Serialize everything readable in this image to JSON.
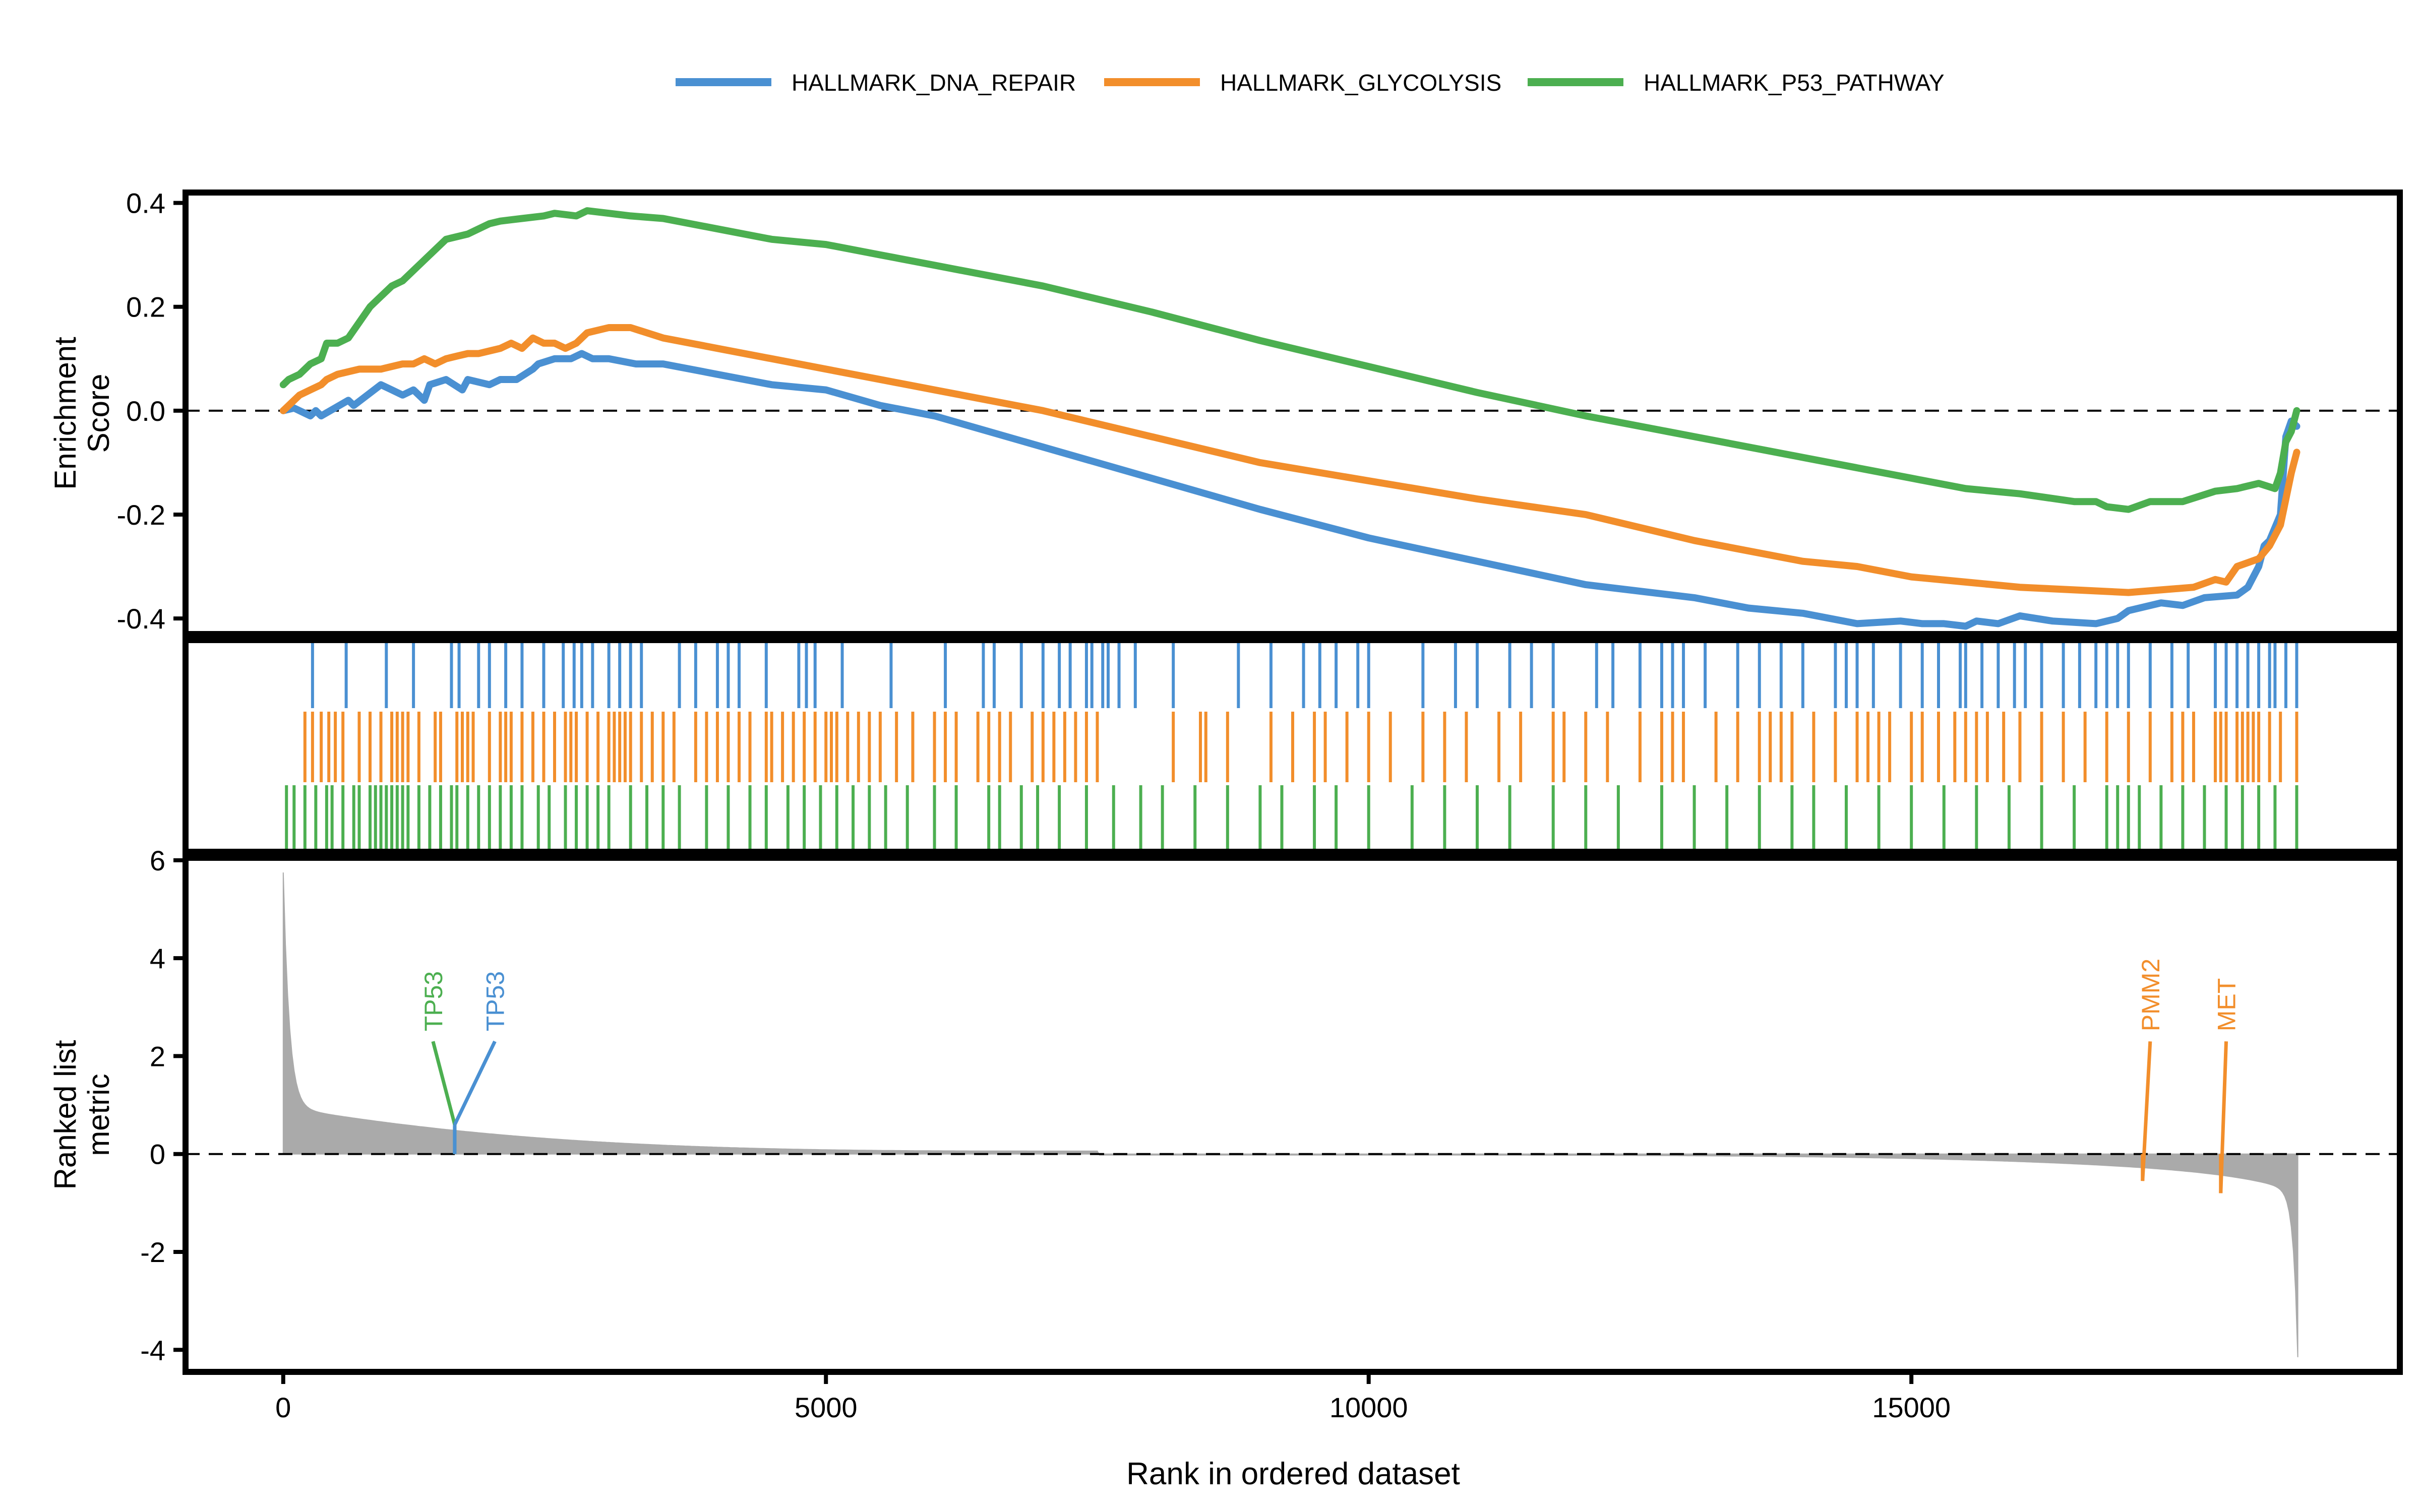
{
  "chart_data": {
    "type": "line",
    "legend": {
      "placement": "top-center",
      "entries": [
        {
          "name": "HALLMARK_DNA_REPAIR",
          "color": "#4a90d2"
        },
        {
          "name": "HALLMARK_GLYCOLYSIS",
          "color": "#f28e2b"
        },
        {
          "name": "HALLMARK_P53_PATHWAY",
          "color": "#4caf50"
        }
      ]
    },
    "xlabel": "Rank in ordered dataset",
    "xlim": [
      -900,
      19500
    ],
    "xticks": [
      0,
      5000,
      10000,
      15000
    ],
    "panels": {
      "enrichment": {
        "ylabel": [
          "Enrichment",
          "Score"
        ],
        "ylim": [
          -0.43,
          0.42
        ],
        "yticks": [
          0.4,
          0.2,
          0.0,
          -0.2,
          -0.4
        ],
        "ytick_labels": [
          "0.4",
          "0.2",
          "0.0",
          "-0.2",
          "-0.4"
        ],
        "baseline": 0
      },
      "hits": {},
      "ranked": {
        "ylabel": [
          "Ranked list",
          "metric"
        ],
        "ylim": [
          -4.45,
          6.05
        ],
        "yticks": [
          6,
          4,
          2,
          0,
          -2,
          -4
        ],
        "ytick_labels": [
          "6",
          "4",
          "2",
          "0",
          "-2",
          "-4"
        ],
        "baseline": 0,
        "fill_color": "#aaaaaa"
      }
    },
    "series": [
      {
        "name": "HALLMARK_DNA_REPAIR",
        "color": "#4a90d2",
        "x": [
          0,
          100,
          200,
          250,
          300,
          350,
          600,
          650,
          900,
          1000,
          1100,
          1200,
          1300,
          1350,
          1500,
          1650,
          1700,
          1900,
          2000,
          2150,
          2300,
          2350,
          2500,
          2650,
          2750,
          2850,
          3000,
          3250,
          3500,
          4000,
          4500,
          5000,
          5500,
          6000,
          7000,
          8000,
          9000,
          10000,
          11000,
          12000,
          13000,
          13500,
          14000,
          14500,
          14900,
          15100,
          15300,
          15500,
          15600,
          15800,
          16000,
          16300,
          16700,
          16900,
          17000,
          17300,
          17500,
          17700,
          18000,
          18100,
          18200,
          18250,
          18300,
          18400,
          18450,
          18500,
          18550
        ],
        "y": [
          0.0,
          0.005,
          -0.005,
          -0.01,
          0.0,
          -0.01,
          0.02,
          0.01,
          0.05,
          0.04,
          0.03,
          0.04,
          0.02,
          0.05,
          0.06,
          0.04,
          0.06,
          0.05,
          0.06,
          0.06,
          0.08,
          0.09,
          0.1,
          0.1,
          0.11,
          0.1,
          0.1,
          0.09,
          0.09,
          0.07,
          0.05,
          0.04,
          0.01,
          -0.01,
          -0.07,
          -0.13,
          -0.19,
          -0.245,
          -0.29,
          -0.335,
          -0.36,
          -0.38,
          -0.39,
          -0.41,
          -0.405,
          -0.41,
          -0.41,
          -0.415,
          -0.405,
          -0.41,
          -0.395,
          -0.405,
          -0.41,
          -0.4,
          -0.385,
          -0.37,
          -0.375,
          -0.36,
          -0.355,
          -0.34,
          -0.3,
          -0.26,
          -0.25,
          -0.2,
          -0.05,
          -0.02,
          -0.03
        ]
      },
      {
        "name": "HALLMARK_GLYCOLYSIS",
        "color": "#f28e2b",
        "x": [
          0,
          150,
          250,
          350,
          400,
          500,
          700,
          900,
          1000,
          1100,
          1200,
          1300,
          1400,
          1500,
          1600,
          1700,
          1800,
          1900,
          2000,
          2100,
          2200,
          2300,
          2400,
          2500,
          2600,
          2700,
          2800,
          3000,
          3200,
          3500,
          4000,
          4500,
          5000,
          5500,
          6000,
          7000,
          8000,
          9000,
          10000,
          11000,
          12000,
          13000,
          14000,
          14500,
          15000,
          15500,
          16000,
          16500,
          17000,
          17300,
          17600,
          17800,
          17900,
          18000,
          18200,
          18300,
          18400,
          18500,
          18550
        ],
        "y": [
          0.0,
          0.03,
          0.04,
          0.05,
          0.06,
          0.07,
          0.08,
          0.08,
          0.085,
          0.09,
          0.09,
          0.1,
          0.09,
          0.1,
          0.105,
          0.11,
          0.11,
          0.115,
          0.12,
          0.13,
          0.12,
          0.14,
          0.13,
          0.13,
          0.12,
          0.13,
          0.15,
          0.16,
          0.16,
          0.14,
          0.12,
          0.1,
          0.08,
          0.06,
          0.04,
          0.0,
          -0.05,
          -0.1,
          -0.135,
          -0.17,
          -0.2,
          -0.25,
          -0.29,
          -0.3,
          -0.32,
          -0.33,
          -0.34,
          -0.345,
          -0.35,
          -0.345,
          -0.34,
          -0.325,
          -0.33,
          -0.3,
          -0.285,
          -0.26,
          -0.22,
          -0.12,
          -0.08
        ]
      },
      {
        "name": "HALLMARK_P53_PATHWAY",
        "color": "#4caf50",
        "x": [
          0,
          50,
          150,
          250,
          350,
          400,
          500,
          600,
          700,
          800,
          900,
          1000,
          1100,
          1200,
          1300,
          1500,
          1700,
          1900,
          2000,
          2200,
          2400,
          2500,
          2700,
          2800,
          3000,
          3200,
          3500,
          4000,
          4500,
          5000,
          5500,
          6000,
          7000,
          8000,
          9000,
          10000,
          11000,
          12000,
          13000,
          14000,
          14500,
          15000,
          15500,
          16000,
          16500,
          16700,
          16800,
          17000,
          17200,
          17500,
          17800,
          18000,
          18200,
          18350,
          18400,
          18450,
          18500,
          18550
        ],
        "y": [
          0.05,
          0.06,
          0.07,
          0.09,
          0.1,
          0.13,
          0.13,
          0.14,
          0.17,
          0.2,
          0.22,
          0.24,
          0.25,
          0.27,
          0.29,
          0.33,
          0.34,
          0.36,
          0.365,
          0.37,
          0.375,
          0.38,
          0.375,
          0.385,
          0.38,
          0.375,
          0.37,
          0.35,
          0.33,
          0.32,
          0.3,
          0.28,
          0.24,
          0.19,
          0.135,
          0.085,
          0.035,
          -0.01,
          -0.05,
          -0.09,
          -0.11,
          -0.13,
          -0.15,
          -0.16,
          -0.175,
          -0.175,
          -0.185,
          -0.19,
          -0.175,
          -0.175,
          -0.155,
          -0.15,
          -0.14,
          -0.15,
          -0.12,
          -0.06,
          -0.04,
          0.0
        ]
      }
    ],
    "hits": [
      {
        "name": "HALLMARK_DNA_REPAIR",
        "color": "#4a90d2",
        "positions": [
          270,
          580,
          950,
          1200,
          1550,
          1620,
          1800,
          1900,
          2050,
          2200,
          2400,
          2580,
          2680,
          2750,
          2850,
          3000,
          3100,
          3200,
          3300,
          3650,
          3800,
          4000,
          4100,
          4200,
          4450,
          4750,
          4820,
          4900,
          5150,
          5600,
          6100,
          6450,
          6550,
          6800,
          7000,
          7150,
          7250,
          7400,
          7450,
          7550,
          7600,
          7700,
          7850,
          8200,
          8800,
          9100,
          9400,
          9550,
          9700,
          9900,
          10000,
          10500,
          10800,
          11000,
          11300,
          11500,
          11700,
          12100,
          12250,
          12500,
          12700,
          12800,
          12900,
          13100,
          13400,
          13600,
          13800,
          14000,
          14300,
          14400,
          14500,
          14650,
          14900,
          15100,
          15250,
          15450,
          15500,
          15650,
          15800,
          15950,
          16050,
          16200,
          16400,
          16550,
          16700,
          16800,
          16900,
          17000,
          17200,
          17400,
          17550,
          17800,
          17900,
          18000,
          18100,
          18200,
          18300,
          18350,
          18450,
          18550
        ]
      },
      {
        "name": "HALLMARK_GLYCOLYSIS",
        "color": "#f28e2b",
        "positions": [
          200,
          270,
          350,
          420,
          480,
          550,
          700,
          800,
          900,
          1000,
          1050,
          1100,
          1150,
          1250,
          1400,
          1450,
          1600,
          1650,
          1700,
          1750,
          1900,
          2000,
          2050,
          2100,
          2200,
          2300,
          2400,
          2500,
          2600,
          2650,
          2700,
          2800,
          2900,
          3000,
          3050,
          3100,
          3150,
          3200,
          3300,
          3400,
          3500,
          3600,
          3800,
          3900,
          4000,
          4100,
          4200,
          4300,
          4450,
          4500,
          4600,
          4700,
          4800,
          4900,
          5000,
          5050,
          5100,
          5200,
          5300,
          5400,
          5500,
          5650,
          5800,
          6000,
          6100,
          6200,
          6400,
          6500,
          6600,
          6700,
          6900,
          7000,
          7100,
          7200,
          7300,
          7400,
          7500,
          8200,
          8450,
          8500,
          8700,
          9100,
          9300,
          9500,
          9600,
          9800,
          10000,
          10200,
          10500,
          10700,
          10900,
          11200,
          11400,
          11700,
          11800,
          12000,
          12200,
          12500,
          12700,
          12800,
          12900,
          13200,
          13400,
          13600,
          13700,
          13800,
          13900,
          14100,
          14300,
          14500,
          14600,
          14700,
          14800,
          15000,
          15100,
          15250,
          15400,
          15500,
          15600,
          15700,
          15850,
          16000,
          16200,
          16400,
          16600,
          16800,
          17000,
          17200,
          17400,
          17500,
          17600,
          17800,
          17850,
          17900,
          18000,
          18050,
          18100,
          18150,
          18200,
          18300,
          18400,
          18550
        ]
      },
      {
        "name": "HALLMARK_P53_PATHWAY",
        "color": "#4caf50",
        "positions": [
          30,
          100,
          200,
          300,
          400,
          450,
          550,
          650,
          700,
          800,
          850,
          900,
          950,
          1000,
          1050,
          1100,
          1150,
          1250,
          1350,
          1450,
          1550,
          1600,
          1700,
          1800,
          1900,
          2000,
          2100,
          2200,
          2350,
          2450,
          2600,
          2700,
          2800,
          2900,
          3000,
          3200,
          3350,
          3500,
          3650,
          3900,
          4100,
          4300,
          4450,
          4650,
          4800,
          4950,
          5100,
          5250,
          5400,
          5550,
          5750,
          6000,
          6200,
          6500,
          6600,
          6800,
          6950,
          7150,
          7400,
          7650,
          7900,
          8100,
          8400,
          8700,
          9000,
          9200,
          9500,
          9700,
          10000,
          10400,
          10700,
          11000,
          11300,
          11700,
          12000,
          12300,
          12700,
          13000,
          13300,
          13600,
          13900,
          14100,
          14400,
          14700,
          15000,
          15300,
          15600,
          15900,
          16200,
          16500,
          16800,
          16900,
          17000,
          17100,
          17300,
          17500,
          17700,
          17900,
          18050,
          18200,
          18350,
          18550
        ]
      }
    ],
    "ranked_metric": {
      "n": 18560,
      "first_value": 5.75,
      "last_value": -4.15,
      "zero_cross": 7500
    },
    "annotations": [
      {
        "label": "TP53",
        "color": "#4caf50",
        "x": 1580,
        "y": 0.6,
        "text_x": 1380,
        "text_y": 2.3
      },
      {
        "label": "TP53",
        "color": "#4a90d2",
        "x": 1580,
        "y": 0.6,
        "text_x": 1950,
        "text_y": 2.3
      },
      {
        "label": "PMM2",
        "color": "#f28e2b",
        "x": 17130,
        "y": -0.55,
        "text_x": 17200,
        "text_y": 2.3
      },
      {
        "label": "MET",
        "color": "#f28e2b",
        "x": 17850,
        "y": -0.8,
        "text_x": 17900,
        "text_y": 2.3
      }
    ]
  }
}
